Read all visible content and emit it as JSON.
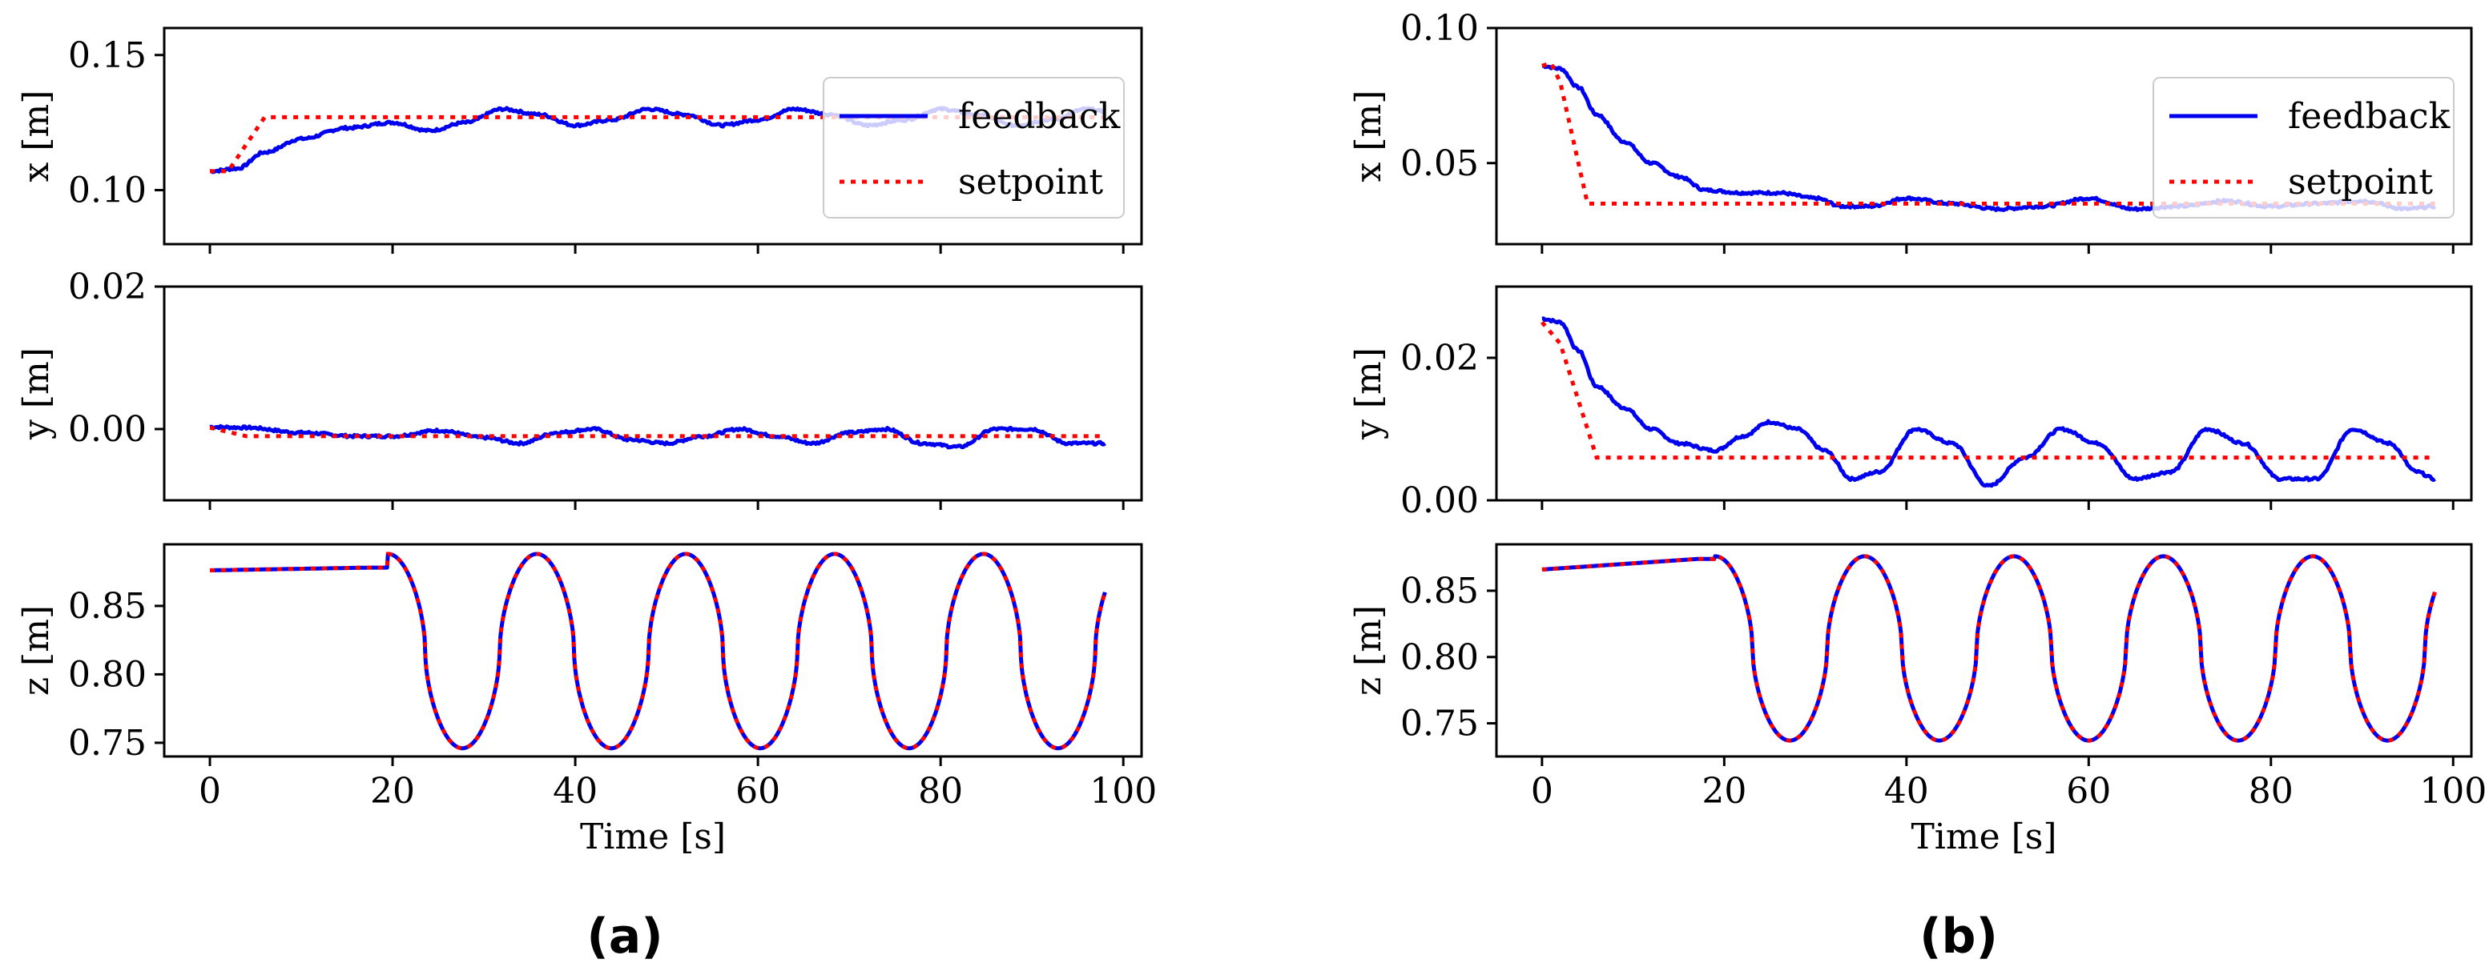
{
  "chart_data": [
    {
      "id": "a",
      "panel_label": "(a)",
      "type": "line",
      "xlabel": "Time [s]",
      "xlim": [
        -5,
        102
      ],
      "xticks": [
        0,
        20,
        40,
        60,
        80,
        100
      ],
      "legend": {
        "placement": "top-right",
        "entries": [
          {
            "name": "feedback",
            "style": "solid",
            "color": "#0000ee"
          },
          {
            "name": "setpoint",
            "style": "dotted",
            "color": "#ff0000"
          }
        ]
      },
      "subplots": [
        {
          "ylabel": "x [m]",
          "ylim": [
            0.08,
            0.16
          ],
          "yticks": [
            0.1,
            0.15
          ],
          "ytick_labels": [
            "0.10",
            "0.15"
          ],
          "setpoint": {
            "x": [
              0,
              2,
              6,
              98
            ],
            "y": [
              0.107,
              0.107,
              0.127,
              0.127
            ]
          },
          "feedback": {
            "x": [
              0,
              3,
              6,
              10,
              15,
              20,
              24,
              28,
              32,
              36,
              40,
              44,
              48,
              52,
              56,
              60,
              64,
              68,
              72,
              76,
              80,
              84,
              88,
              92,
              96,
              98
            ],
            "y": [
              0.107,
              0.108,
              0.114,
              0.119,
              0.123,
              0.125,
              0.122,
              0.125,
              0.13,
              0.128,
              0.124,
              0.126,
              0.13,
              0.128,
              0.124,
              0.126,
              0.13,
              0.128,
              0.124,
              0.126,
              0.13,
              0.128,
              0.124,
              0.126,
              0.13,
              0.129
            ]
          }
        },
        {
          "ylabel": "y [m]",
          "ylim": [
            -0.01,
            0.02
          ],
          "yticks": [
            0.0,
            0.02
          ],
          "ytick_labels": [
            "0.00",
            "0.02"
          ],
          "setpoint": {
            "x": [
              0,
              4,
              98
            ],
            "y": [
              0.0002,
              -0.001,
              -0.001
            ]
          },
          "feedback": {
            "x": [
              0,
              4,
              10,
              16,
              20,
              25,
              30,
              34,
              38,
              42,
              46,
              50,
              54,
              58,
              62,
              66,
              70,
              74,
              78,
              82,
              86,
              90,
              94,
              98
            ],
            "y": [
              0.0003,
              0.0002,
              -0.0005,
              -0.001,
              -0.001,
              -0.0002,
              -0.0012,
              -0.002,
              -0.0005,
              0.0,
              -0.0015,
              -0.002,
              -0.001,
              0.0,
              -0.001,
              -0.002,
              -0.0005,
              0.0,
              -0.002,
              -0.0025,
              0.0,
              0.0,
              -0.002,
              -0.002
            ]
          }
        },
        {
          "ylabel": "z [m]",
          "ylim": [
            0.74,
            0.895
          ],
          "yticks": [
            0.75,
            0.8,
            0.85
          ],
          "ytick_labels": [
            "0.75",
            "0.80",
            "0.85"
          ],
          "setpoint": {
            "kind": "wave",
            "flat_start": 0.876,
            "flat_end_y": 0.878,
            "flat_until": 19.5,
            "high": 0.888,
            "low": 0.746,
            "period": 16.3,
            "t_end": 98
          },
          "feedback": {
            "kind": "wave",
            "flat_start": 0.876,
            "flat_end_y": 0.878,
            "flat_until": 19.5,
            "high": 0.888,
            "low": 0.746,
            "period": 16.3,
            "t_end": 98
          }
        }
      ]
    },
    {
      "id": "b",
      "panel_label": "(b)",
      "type": "line",
      "xlabel": "Time [s]",
      "xlim": [
        -5,
        102
      ],
      "xticks": [
        0,
        20,
        40,
        60,
        80,
        100
      ],
      "legend": {
        "placement": "top-right",
        "entries": [
          {
            "name": "feedback",
            "style": "solid",
            "color": "#0000ee"
          },
          {
            "name": "setpoint",
            "style": "dotted",
            "color": "#ff0000"
          }
        ]
      },
      "subplots": [
        {
          "ylabel": "x [m]",
          "ylim": [
            0.02,
            0.1
          ],
          "yticks": [
            0.05,
            0.1
          ],
          "ytick_labels": [
            "0.05",
            "0.10"
          ],
          "setpoint": {
            "x": [
              0,
              1,
              2,
              5,
              98
            ],
            "y": [
              0.086,
              0.087,
              0.08,
              0.035,
              0.035
            ]
          },
          "feedback": {
            "x": [
              0,
              2,
              4,
              6,
              9,
              12,
              15,
              18,
              22,
              26,
              30,
              33,
              36,
              40,
              45,
              50,
              55,
              60,
              65,
              70,
              75,
              80,
              85,
              90,
              95,
              98
            ],
            "y": [
              0.086,
              0.085,
              0.078,
              0.068,
              0.058,
              0.05,
              0.045,
              0.04,
              0.039,
              0.039,
              0.037,
              0.034,
              0.034,
              0.037,
              0.035,
              0.033,
              0.034,
              0.037,
              0.033,
              0.034,
              0.036,
              0.034,
              0.035,
              0.036,
              0.033,
              0.034
            ]
          }
        },
        {
          "ylabel": "y [m]",
          "ylim": [
            0.0,
            0.03
          ],
          "yticks": [
            0.0,
            0.02
          ],
          "ytick_labels": [
            "0.00",
            "0.02"
          ],
          "setpoint": {
            "x": [
              0,
              2,
              6,
              98
            ],
            "y": [
              0.025,
              0.022,
              0.006,
              0.006
            ]
          },
          "feedback": {
            "x": [
              0,
              2,
              4,
              6,
              9,
              12,
              15,
              19,
              22,
              25,
              28,
              31,
              34,
              37,
              41,
              45,
              49,
              53,
              57,
              61,
              65,
              69,
              73,
              77,
              81,
              85,
              89,
              93,
              96,
              98
            ],
            "y": [
              0.0255,
              0.025,
              0.021,
              0.016,
              0.013,
              0.01,
              0.008,
              0.007,
              0.009,
              0.011,
              0.01,
              0.007,
              0.003,
              0.004,
              0.01,
              0.008,
              0.002,
              0.006,
              0.01,
              0.008,
              0.003,
              0.004,
              0.01,
              0.008,
              0.003,
              0.003,
              0.01,
              0.008,
              0.004,
              0.003
            ]
          }
        },
        {
          "ylabel": "z [m]",
          "ylim": [
            0.725,
            0.885
          ],
          "yticks": [
            0.75,
            0.8,
            0.85
          ],
          "ytick_labels": [
            "0.75",
            "0.80",
            "0.85"
          ],
          "setpoint": {
            "kind": "wave",
            "flat_start": 0.866,
            "flat_end_y": 0.874,
            "flat_until": 19.0,
            "high": 0.876,
            "low": 0.737,
            "period": 16.4,
            "t_end": 98
          },
          "feedback": {
            "kind": "wave",
            "flat_start": 0.866,
            "flat_end_y": 0.874,
            "flat_until": 19.0,
            "high": 0.876,
            "low": 0.737,
            "period": 16.4,
            "t_end": 98
          }
        }
      ]
    }
  ]
}
